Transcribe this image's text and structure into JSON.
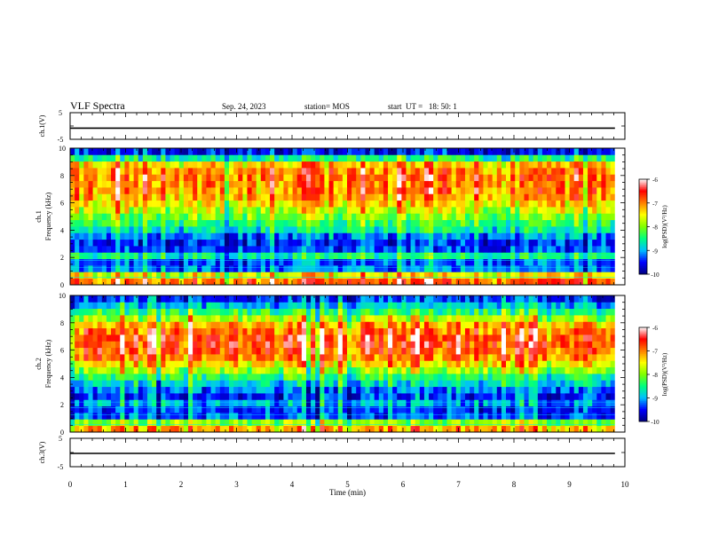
{
  "header": {
    "title": "VLF Spectra",
    "date": "Sep. 24, 2023",
    "station": "station= MOS",
    "start": "start  UT =   18: 50: 1"
  },
  "chart_data": [
    {
      "type": "line",
      "name": "ch.1 waveform",
      "ylabel": "ch.1(V)",
      "ylim": [
        -5,
        5
      ],
      "y_ticks": [
        5,
        -5
      ],
      "xlim": [
        0,
        10
      ],
      "x": [
        0,
        9.82
      ],
      "y": [
        -0.8,
        -0.8
      ]
    },
    {
      "type": "heatmap",
      "name": "ch.1 spectrogram",
      "ylabel": "ch.1\nFrequency  (kHz)",
      "ylim": [
        0,
        10
      ],
      "y_ticks": [
        0,
        2,
        4,
        6,
        8,
        10
      ],
      "xlim": [
        0,
        10
      ],
      "data_end_min": 9.82,
      "colorbar": {
        "label": "log(PSD)(V²/Hz)",
        "ticks": [
          -6,
          -7,
          -8,
          -9,
          -10
        ],
        "range": [
          -10,
          -6
        ]
      },
      "band_profile_log_psd": [
        {
          "f": 0.3,
          "v": -6.9
        },
        {
          "f": 0.6,
          "v": -7.6
        },
        {
          "f": 1.0,
          "v": -9.2
        },
        {
          "f": 1.5,
          "v": -9.3
        },
        {
          "f": 2.0,
          "v": -8.6
        },
        {
          "f": 2.5,
          "v": -9.4
        },
        {
          "f": 3.0,
          "v": -9.5
        },
        {
          "f": 3.5,
          "v": -9.2
        },
        {
          "f": 4.0,
          "v": -8.7
        },
        {
          "f": 4.5,
          "v": -8.4
        },
        {
          "f": 5.0,
          "v": -8.1
        },
        {
          "f": 5.5,
          "v": -7.8
        },
        {
          "f": 6.0,
          "v": -7.5
        },
        {
          "f": 6.5,
          "v": -7.2
        },
        {
          "f": 7.0,
          "v": -7.1
        },
        {
          "f": 7.5,
          "v": -7.1
        },
        {
          "f": 8.0,
          "v": -7.0
        },
        {
          "f": 8.5,
          "v": -7.1
        },
        {
          "f": 9.0,
          "v": -7.4
        },
        {
          "f": 9.5,
          "v": -8.6
        },
        {
          "f": 10.0,
          "v": -9.6
        }
      ]
    },
    {
      "type": "heatmap",
      "name": "ch.2 spectrogram",
      "ylabel": "ch.2\nFrequency  (kHz)",
      "ylim": [
        0,
        10
      ],
      "y_ticks": [
        0,
        2,
        4,
        6,
        8,
        10
      ],
      "xlim": [
        0,
        10
      ],
      "data_end_min": 9.82,
      "colorbar": {
        "label": "log(PSD)(V²/Hz)",
        "ticks": [
          -6,
          -7,
          -8,
          -9,
          -10
        ],
        "range": [
          -10,
          -6
        ]
      },
      "band_profile_log_psd": [
        {
          "f": 0.3,
          "v": -7.2
        },
        {
          "f": 0.6,
          "v": -8.0
        },
        {
          "f": 1.0,
          "v": -9.3
        },
        {
          "f": 1.5,
          "v": -9.4
        },
        {
          "f": 2.0,
          "v": -9.0
        },
        {
          "f": 2.5,
          "v": -9.4
        },
        {
          "f": 3.0,
          "v": -9.2
        },
        {
          "f": 3.5,
          "v": -8.8
        },
        {
          "f": 4.0,
          "v": -8.4
        },
        {
          "f": 4.5,
          "v": -7.9
        },
        {
          "f": 5.0,
          "v": -7.4
        },
        {
          "f": 5.5,
          "v": -7.0
        },
        {
          "f": 6.0,
          "v": -6.8
        },
        {
          "f": 6.5,
          "v": -6.7
        },
        {
          "f": 7.0,
          "v": -6.7
        },
        {
          "f": 7.5,
          "v": -6.9
        },
        {
          "f": 8.0,
          "v": -7.2
        },
        {
          "f": 8.5,
          "v": -7.8
        },
        {
          "f": 9.0,
          "v": -8.4
        },
        {
          "f": 9.5,
          "v": -8.9
        },
        {
          "f": 10.0,
          "v": -9.4
        }
      ]
    },
    {
      "type": "line",
      "name": "ch.3 waveform",
      "ylabel": "ch.3(V)",
      "ylim": [
        -5,
        5
      ],
      "y_ticks": [
        5,
        -5
      ],
      "xlim": [
        0,
        10
      ],
      "x": [
        0,
        9.82
      ],
      "y": [
        -0.3,
        -0.3
      ]
    }
  ],
  "x_axis": {
    "label": "Time  (min)",
    "ticks": [
      "0",
      "1",
      "2",
      "3",
      "4",
      "5",
      "6",
      "7",
      "8",
      "9",
      "10"
    ],
    "range": [
      0,
      10
    ]
  },
  "colors": {
    "colormap": [
      "#000080",
      "#0000ff",
      "#00bfff",
      "#00ff80",
      "#80ff00",
      "#ffff00",
      "#ff8000",
      "#ff0000",
      "#ffffff"
    ]
  }
}
